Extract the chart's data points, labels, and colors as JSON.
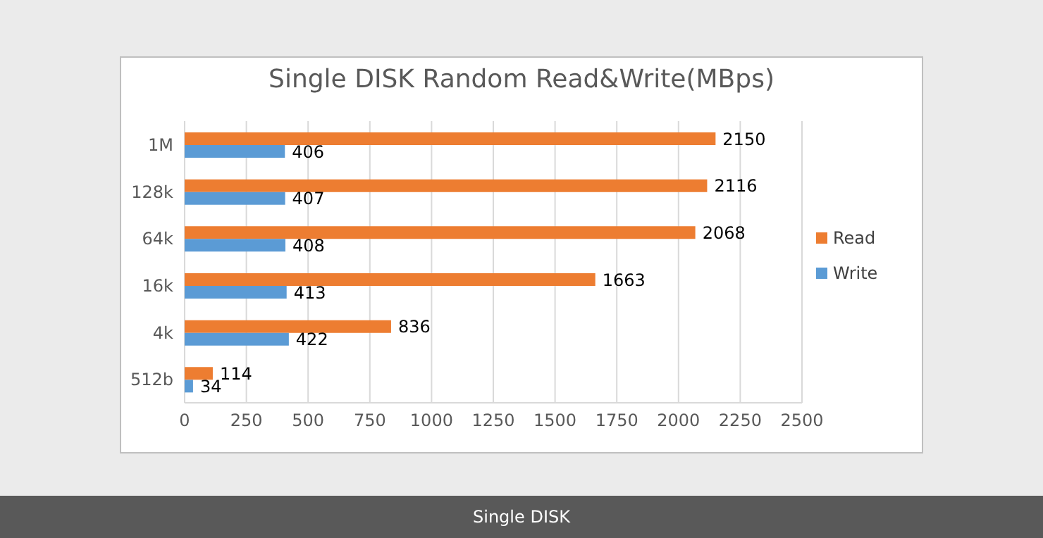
{
  "chart_data": {
    "type": "bar",
    "orientation": "horizontal",
    "title": "Single DISK Random Read&Write(MBps)",
    "categories": [
      "1M",
      "128k",
      "64k",
      "16k",
      "4k",
      "512b"
    ],
    "series": [
      {
        "name": "Read",
        "color": "#ed7d31",
        "values": [
          2150,
          2116,
          2068,
          1663,
          836,
          114
        ]
      },
      {
        "name": "Write",
        "color": "#5b9bd5",
        "values": [
          406,
          407,
          408,
          413,
          422,
          34
        ]
      }
    ],
    "xlim": [
      0,
      2500
    ],
    "xticks": [
      0,
      250,
      500,
      750,
      1000,
      1250,
      1500,
      1750,
      2000,
      2250,
      2500
    ],
    "grid": "x",
    "legend": "right",
    "data_labels": true,
    "annotations": [
      "Single DISK"
    ]
  }
}
